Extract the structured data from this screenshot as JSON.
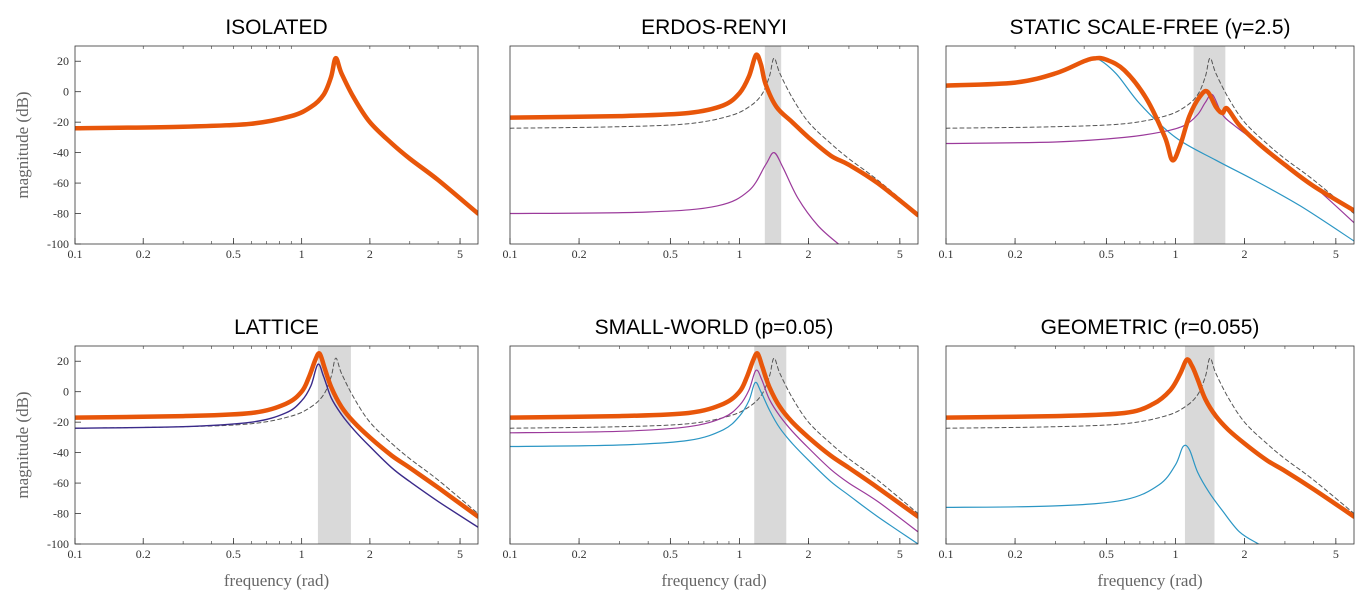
{
  "figure": {
    "xlabel": "frequency (rad)",
    "ylabel": "magnitude (dB)"
  },
  "colors": {
    "main": "#e8560a",
    "purple": "#9b3a9b",
    "cyan": "#2b96c4",
    "navy": "#3a2a8a",
    "reference": "#555555",
    "band": "#d9d9d9"
  },
  "chart_data": [
    {
      "type": "line",
      "title": "ISOLATED",
      "xscale": "log",
      "xlim": [
        0.1,
        6
      ],
      "ylim": [
        -100,
        30
      ],
      "xticks": [
        "0.1",
        "0.2",
        "0.5",
        "1",
        "2",
        "5"
      ],
      "yticks": [
        "20",
        "0",
        "-20",
        "-40",
        "-60",
        "-80",
        "-100"
      ],
      "show_yticks": true,
      "show_xlabel": false,
      "show_ylabel": true,
      "bands": [],
      "series": [
        {
          "style": "main",
          "x": [
            0.1,
            0.3,
            0.6,
            0.9,
            1.1,
            1.25,
            1.35,
            1.414,
            1.5,
            1.7,
            2,
            2.5,
            3,
            4,
            6
          ],
          "y": [
            -24,
            -23,
            -21,
            -16,
            -10,
            -2,
            10,
            22,
            12,
            -4,
            -20,
            -34,
            -44,
            -58,
            -80
          ]
        }
      ]
    },
    {
      "type": "line",
      "title": "ERDOS-RENYI",
      "xscale": "log",
      "xlim": [
        0.1,
        6
      ],
      "ylim": [
        -100,
        30
      ],
      "xticks": [
        "0.1",
        "0.2",
        "0.5",
        "1",
        "2",
        "5"
      ],
      "yticks": [],
      "show_yticks": false,
      "show_xlabel": false,
      "show_ylabel": false,
      "bands": [
        [
          1.29,
          1.52
        ]
      ],
      "series": [
        {
          "style": "ref",
          "x": [
            0.1,
            0.3,
            0.6,
            0.9,
            1.1,
            1.25,
            1.35,
            1.414,
            1.5,
            1.7,
            2,
            2.5,
            3,
            4,
            6
          ],
          "y": [
            -24,
            -23,
            -21,
            -16,
            -10,
            -2,
            10,
            22,
            12,
            -4,
            -20,
            -34,
            -44,
            -58,
            -80
          ]
        },
        {
          "style": "purple",
          "x": [
            0.1,
            0.4,
            0.8,
            1.1,
            1.3,
            1.414,
            1.55,
            1.8,
            2.2,
            2.7
          ],
          "y": [
            -80,
            -79,
            -75,
            -65,
            -48,
            -40,
            -50,
            -70,
            -88,
            -100
          ]
        },
        {
          "style": "main",
          "x": [
            0.1,
            0.3,
            0.6,
            0.85,
            1.0,
            1.1,
            1.18,
            1.24,
            1.3,
            1.45,
            1.7,
            2,
            2.5,
            3,
            4,
            6
          ],
          "y": [
            -17,
            -16,
            -14,
            -9,
            -1,
            10,
            24,
            18,
            5,
            -10,
            -20,
            -30,
            -42,
            -48,
            -60,
            -81
          ]
        }
      ]
    },
    {
      "type": "line",
      "title": "STATIC SCALE-FREE (γ=2.5)",
      "xscale": "log",
      "xlim": [
        0.1,
        6
      ],
      "ylim": [
        -100,
        30
      ],
      "xticks": [
        "0.1",
        "0.2",
        "0.5",
        "1",
        "2",
        "5"
      ],
      "yticks": [],
      "show_yticks": false,
      "show_xlabel": false,
      "show_ylabel": false,
      "bands": [
        [
          1.2,
          1.65
        ]
      ],
      "series": [
        {
          "style": "ref",
          "x": [
            0.1,
            0.3,
            0.6,
            0.9,
            1.1,
            1.25,
            1.35,
            1.414,
            1.5,
            1.7,
            2,
            2.5,
            3,
            4,
            6
          ],
          "y": [
            -24,
            -23,
            -21,
            -16,
            -10,
            -2,
            10,
            22,
            12,
            -4,
            -20,
            -34,
            -44,
            -58,
            -80
          ]
        },
        {
          "style": "cyan",
          "x": [
            0.1,
            0.2,
            0.3,
            0.4,
            0.45,
            0.55,
            0.7,
            1.0,
            1.5,
            2.2,
            3.5,
            6
          ],
          "y": [
            3,
            6,
            12,
            20,
            22,
            12,
            -8,
            -30,
            -45,
            -58,
            -75,
            -98
          ]
        },
        {
          "style": "purple",
          "x": [
            0.1,
            0.3,
            0.6,
            0.9,
            1.1,
            1.25,
            1.35,
            1.45,
            1.6,
            1.8,
            2.2,
            3,
            4,
            6
          ],
          "y": [
            -34,
            -33,
            -30,
            -26,
            -22,
            -15,
            -7,
            -2,
            -15,
            -22,
            -32,
            -48,
            -62,
            -86
          ]
        },
        {
          "style": "main",
          "x": [
            0.1,
            0.2,
            0.3,
            0.4,
            0.45,
            0.5,
            0.6,
            0.75,
            0.9,
            0.97,
            1.05,
            1.15,
            1.28,
            1.38,
            1.5,
            1.6,
            1.68,
            1.9,
            2.3,
            3,
            4,
            6
          ],
          "y": [
            4,
            6,
            12,
            20,
            22,
            21,
            14,
            -5,
            -30,
            -45,
            -35,
            -16,
            -3,
            0,
            -10,
            -14,
            -11,
            -22,
            -34,
            -48,
            -62,
            -78
          ]
        }
      ]
    },
    {
      "type": "line",
      "title": "LATTICE",
      "xscale": "log",
      "xlim": [
        0.1,
        6
      ],
      "ylim": [
        -100,
        30
      ],
      "xticks": [
        "0.1",
        "0.2",
        "0.5",
        "1",
        "2",
        "5"
      ],
      "yticks": [
        "20",
        "0",
        "-20",
        "-40",
        "-60",
        "-80",
        "-100"
      ],
      "show_yticks": true,
      "show_xlabel": true,
      "show_ylabel": true,
      "bands": [
        [
          1.18,
          1.65
        ]
      ],
      "series": [
        {
          "style": "ref",
          "x": [
            0.1,
            0.3,
            0.6,
            0.9,
            1.1,
            1.25,
            1.35,
            1.414,
            1.5,
            1.7,
            2,
            2.5,
            3,
            4,
            6
          ],
          "y": [
            -24,
            -23,
            -21,
            -16,
            -10,
            -2,
            10,
            22,
            12,
            -4,
            -20,
            -34,
            -44,
            -58,
            -80
          ]
        },
        {
          "style": "navy",
          "x": [
            0.1,
            0.3,
            0.6,
            0.85,
            1.0,
            1.1,
            1.18,
            1.25,
            1.35,
            1.5,
            1.7,
            2.0,
            2.5,
            3,
            4,
            6
          ],
          "y": [
            -24,
            -23,
            -20,
            -14,
            -6,
            4,
            18,
            10,
            -4,
            -15,
            -25,
            -36,
            -50,
            -59,
            -72,
            -89
          ]
        },
        {
          "style": "main",
          "x": [
            0.1,
            0.3,
            0.6,
            0.85,
            1.0,
            1.08,
            1.15,
            1.2,
            1.26,
            1.35,
            1.5,
            1.7,
            2.0,
            2.5,
            3,
            4,
            6
          ],
          "y": [
            -17,
            -16,
            -14,
            -8,
            0,
            10,
            21,
            25,
            16,
            3,
            -10,
            -20,
            -30,
            -42,
            -50,
            -63,
            -82
          ]
        }
      ]
    },
    {
      "type": "line",
      "title": "SMALL-WORLD (p=0.05)",
      "xscale": "log",
      "xlim": [
        0.1,
        6
      ],
      "ylim": [
        -100,
        30
      ],
      "xticks": [
        "0.1",
        "0.2",
        "0.5",
        "1",
        "2",
        "5"
      ],
      "yticks": [],
      "show_yticks": false,
      "show_xlabel": true,
      "show_ylabel": false,
      "bands": [
        [
          1.16,
          1.6
        ]
      ],
      "series": [
        {
          "style": "ref",
          "x": [
            0.1,
            0.3,
            0.6,
            0.9,
            1.1,
            1.25,
            1.35,
            1.414,
            1.5,
            1.7,
            2,
            2.5,
            3,
            4,
            6
          ],
          "y": [
            -24,
            -23,
            -21,
            -16,
            -10,
            -2,
            10,
            22,
            12,
            -4,
            -20,
            -34,
            -44,
            -58,
            -80
          ]
        },
        {
          "style": "purple",
          "x": [
            0.1,
            0.3,
            0.6,
            0.85,
            1.0,
            1.1,
            1.18,
            1.25,
            1.35,
            1.5,
            1.7,
            2.0,
            2.5,
            3,
            4,
            6
          ],
          "y": [
            -27,
            -26,
            -23,
            -17,
            -9,
            1,
            14,
            8,
            -5,
            -16,
            -26,
            -37,
            -51,
            -60,
            -72,
            -92
          ]
        },
        {
          "style": "cyan",
          "x": [
            0.1,
            0.3,
            0.6,
            0.85,
            1.0,
            1.1,
            1.17,
            1.24,
            1.35,
            1.5,
            1.7,
            2.0,
            2.5,
            3,
            4,
            6
          ],
          "y": [
            -36,
            -35,
            -32,
            -25,
            -16,
            -6,
            6,
            0,
            -12,
            -24,
            -34,
            -45,
            -59,
            -68,
            -82,
            -100
          ]
        },
        {
          "style": "main",
          "x": [
            0.1,
            0.3,
            0.6,
            0.85,
            1.0,
            1.08,
            1.15,
            1.2,
            1.26,
            1.35,
            1.5,
            1.7,
            2.0,
            2.5,
            3,
            4,
            6
          ],
          "y": [
            -17,
            -16,
            -14,
            -8,
            0,
            10,
            21,
            25,
            16,
            3,
            -10,
            -20,
            -30,
            -42,
            -50,
            -63,
            -82
          ]
        }
      ]
    },
    {
      "type": "line",
      "title": "GEOMETRIC (r=0.055)",
      "xscale": "log",
      "xlim": [
        0.1,
        6
      ],
      "ylim": [
        -100,
        30
      ],
      "xticks": [
        "0.1",
        "0.2",
        "0.5",
        "1",
        "2",
        "5"
      ],
      "yticks": [],
      "show_yticks": false,
      "show_xlabel": true,
      "show_ylabel": false,
      "bands": [
        [
          1.1,
          1.48
        ]
      ],
      "series": [
        {
          "style": "ref",
          "x": [
            0.1,
            0.3,
            0.6,
            0.9,
            1.1,
            1.25,
            1.35,
            1.414,
            1.5,
            1.7,
            2,
            2.5,
            3,
            4,
            6
          ],
          "y": [
            -24,
            -23,
            -21,
            -16,
            -10,
            -2,
            10,
            22,
            12,
            -4,
            -20,
            -34,
            -44,
            -58,
            -80
          ]
        },
        {
          "style": "cyan",
          "x": [
            0.1,
            0.3,
            0.6,
            0.85,
            1.0,
            1.08,
            1.15,
            1.25,
            1.4,
            1.6,
            1.9,
            2.3
          ],
          "y": [
            -76,
            -75,
            -71,
            -61,
            -48,
            -36,
            -38,
            -53,
            -66,
            -78,
            -92,
            -100
          ]
        },
        {
          "style": "main",
          "x": [
            0.1,
            0.3,
            0.6,
            0.8,
            0.95,
            1.05,
            1.12,
            1.18,
            1.25,
            1.35,
            1.5,
            1.7,
            2.0,
            2.5,
            3,
            4,
            6
          ],
          "y": [
            -17,
            -16,
            -14,
            -8,
            1,
            12,
            21,
            17,
            8,
            -5,
            -16,
            -25,
            -34,
            -45,
            -52,
            -64,
            -82
          ]
        }
      ]
    }
  ]
}
